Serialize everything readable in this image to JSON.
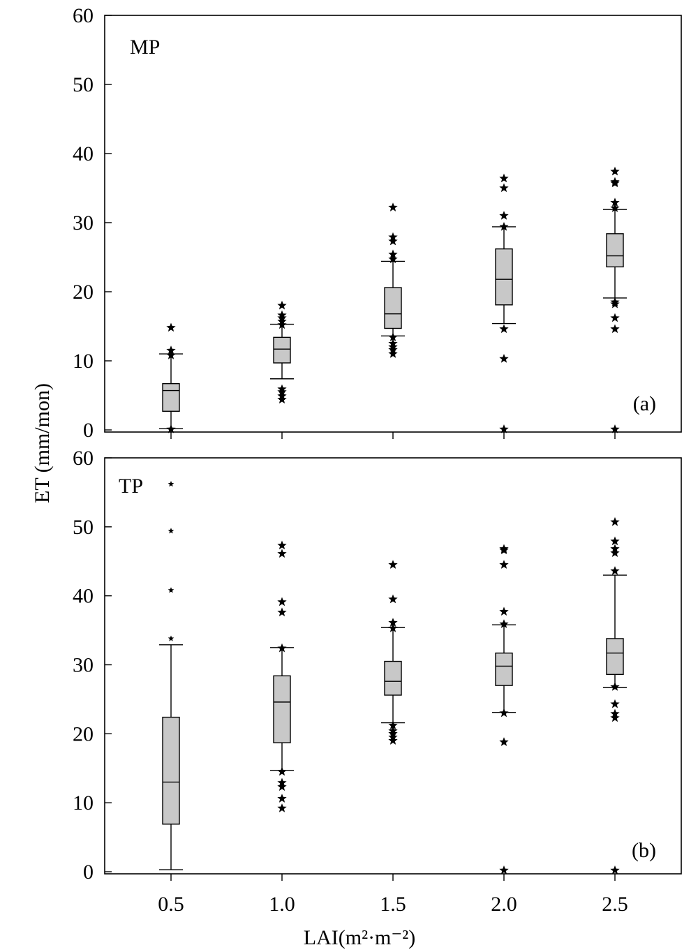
{
  "chart_data": {
    "type": "box",
    "shared_axes": {
      "xlabel_main": "LAI",
      "xlabel_unit": "(m²·m⁻²)",
      "ylabel": "ET (mm/mon)",
      "x_ticks": [
        "0.5",
        "1.0",
        "1.5",
        "2.0",
        "2.5"
      ],
      "x_values": [
        0.5,
        1.0,
        1.5,
        2.0,
        2.5
      ],
      "ylim": [
        0,
        60
      ],
      "y_ticks": [
        0,
        10,
        20,
        30,
        40,
        50,
        60
      ]
    },
    "panels": [
      {
        "name": "MP",
        "tag": "(a)",
        "boxes": [
          {
            "x": 0.5,
            "whisker_low": 0.2,
            "q1": 2.7,
            "median": 5.7,
            "q3": 6.7,
            "whisker_high": 11.0,
            "outliers": [
              0.1,
              10.8,
              11.5,
              14.8
            ]
          },
          {
            "x": 1.0,
            "whisker_low": 7.4,
            "q1": 9.7,
            "median": 11.7,
            "q3": 13.4,
            "whisker_high": 15.3,
            "outliers": [
              4.4,
              4.9,
              5.5,
              5.9,
              15.2,
              15.7,
              16.2,
              16.6,
              18.0
            ]
          },
          {
            "x": 1.5,
            "whisker_low": 13.6,
            "q1": 14.7,
            "median": 16.8,
            "q3": 20.6,
            "whisker_high": 24.4,
            "outliers": [
              11.0,
              11.6,
              12.0,
              12.5,
              13.4,
              24.7,
              25.4,
              27.3,
              27.9,
              32.2
            ]
          },
          {
            "x": 2.0,
            "whisker_low": 15.4,
            "q1": 18.1,
            "median": 21.8,
            "q3": 26.2,
            "whisker_high": 29.4,
            "outliers": [
              0.1,
              10.3,
              14.6,
              29.4,
              31.0,
              35.0,
              36.4
            ]
          },
          {
            "x": 2.5,
            "whisker_low": 19.1,
            "q1": 23.6,
            "median": 25.2,
            "q3": 28.4,
            "whisker_high": 31.9,
            "outliers": [
              0.1,
              14.6,
              16.2,
              18.2,
              18.5,
              32.1,
              32.9,
              35.7,
              35.9,
              37.4
            ]
          }
        ]
      },
      {
        "name": "TP",
        "tag": "(b)",
        "boxes": [
          {
            "x": 0.5,
            "whisker_low": 0.3,
            "q1": 6.9,
            "median": 13.0,
            "q3": 22.4,
            "whisker_high": 32.9,
            "outliers": [
              33.8,
              40.8,
              49.4,
              56.2
            ]
          },
          {
            "x": 1.0,
            "whisker_low": 14.7,
            "q1": 18.7,
            "median": 24.6,
            "q3": 28.4,
            "whisker_high": 32.5,
            "outliers": [
              9.2,
              10.6,
              12.3,
              12.9,
              14.5,
              32.4,
              37.6,
              39.1,
              46.1,
              47.3
            ]
          },
          {
            "x": 1.5,
            "whisker_low": 21.6,
            "q1": 25.6,
            "median": 27.6,
            "q3": 30.5,
            "whisker_high": 35.4,
            "outliers": [
              19.0,
              19.5,
              20.0,
              20.4,
              21.2,
              35.3,
              36.1,
              39.5,
              44.5
            ]
          },
          {
            "x": 2.0,
            "whisker_low": 23.1,
            "q1": 27.0,
            "median": 29.8,
            "q3": 31.7,
            "whisker_high": 35.8,
            "outliers": [
              0.2,
              18.8,
              23.0,
              35.9,
              37.7,
              44.5,
              46.6,
              46.8
            ]
          },
          {
            "x": 2.5,
            "whisker_low": 26.7,
            "q1": 28.6,
            "median": 31.7,
            "q3": 33.8,
            "whisker_high": 43.0,
            "outliers": [
              0.2,
              22.3,
              22.9,
              24.3,
              26.8,
              43.6,
              46.2,
              46.8,
              47.9,
              50.7
            ]
          }
        ]
      }
    ]
  }
}
